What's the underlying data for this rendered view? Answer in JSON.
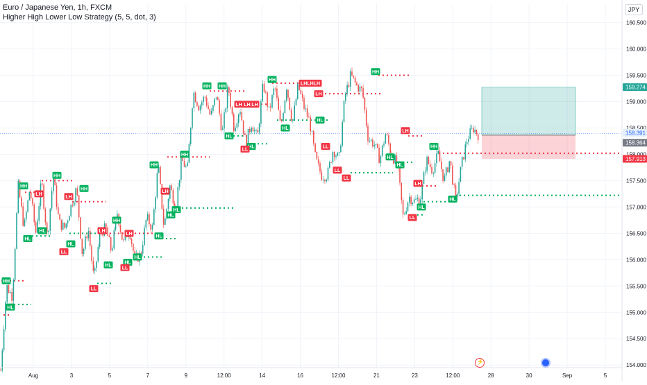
{
  "header": {
    "title": "Euro / Japanese Yen, 1h, FXCM",
    "indicator": "Higher High Lower Low Strategy (5, 5, dot, 3)",
    "currency": "JPY"
  },
  "price_tags": {
    "take_profit": "159.274",
    "current": "158.391",
    "entry": "158.364",
    "stop": "157.913"
  },
  "labels": {
    "HH": "HH",
    "HL": "HL",
    "LH": "LH",
    "LL": "LL",
    "LHLH": "LHLHLH"
  },
  "colors": {
    "up": "#26a69a",
    "down": "#ef5350",
    "green_label": "#00b15d",
    "red_label": "#f23645",
    "tp_zone": "rgba(38,166,154,0.22)",
    "sl_zone": "rgba(242,54,69,0.22)"
  },
  "icons": {
    "flash": "flash-icon",
    "globe": "globe-icon"
  },
  "chart_data": {
    "type": "candlestick",
    "y_ticks": [
      "160.500",
      "160.000",
      "159.500",
      "159.000",
      "158.500",
      "158.000",
      "157.500",
      "157.000",
      "156.500",
      "156.000",
      "155.500",
      "155.000",
      "154.500",
      "154.000"
    ],
    "ylim": [
      153.95,
      160.85
    ],
    "x_ticks": [
      "Aug",
      "3",
      "5",
      "7",
      "9",
      "12:00",
      "14",
      "16",
      "12:00",
      "21",
      "23",
      "12:00",
      "28",
      "30",
      "Sep",
      "5"
    ],
    "path": [
      153.9,
      155.5,
      155.3,
      157.4,
      156.6,
      157.35,
      156.5,
      157.5,
      156.4,
      157.6,
      156.7,
      156.6,
      157.0,
      157.35,
      156.1,
      156.6,
      155.6,
      156.5,
      156.6,
      156.15,
      156.9,
      156.3,
      156.6,
      156.0,
      156.1,
      156.8,
      156.6,
      157.8,
      156.6,
      157.4,
      157.0,
      157.9,
      157.7,
      159.2,
      158.9,
      159.1,
      158.7,
      159.15,
      158.4,
      159.3,
      158.5,
      158.9,
      158.2,
      158.6,
      158.3,
      159.35,
      158.8,
      159.3,
      158.5,
      159.3,
      158.6,
      159.3,
      158.9,
      158.6,
      157.9,
      157.6,
      157.6,
      158.1,
      157.9,
      159.1,
      159.5,
      159.3,
      159.2,
      158.3,
      158.2,
      157.9,
      158.4,
      158.0,
      157.8,
      156.8,
      157.2,
      157.1,
      157.2,
      157.9,
      157.7,
      158.0,
      157.5,
      157.9,
      157.1,
      157.8,
      158.3,
      158.5,
      158.35
    ],
    "green_labels": [
      {
        "t": "HH",
        "x": 9,
        "v": 155.6
      },
      {
        "t": "HL",
        "x": 15,
        "v": 155.1
      },
      {
        "t": "HH",
        "x": 34,
        "v": 157.4
      },
      {
        "t": "HL",
        "x": 40,
        "v": 156.4
      },
      {
        "t": "HL",
        "x": 61,
        "v": 156.55
      },
      {
        "t": "HH",
        "x": 82,
        "v": 157.6
      },
      {
        "t": "HL",
        "x": 102,
        "v": 156.3
      },
      {
        "t": "HH",
        "x": 121,
        "v": 157.35
      },
      {
        "t": "HL",
        "x": 156,
        "v": 155.9
      },
      {
        "t": "HH",
        "x": 168,
        "v": 156.75
      },
      {
        "t": "HL",
        "x": 184,
        "v": 155.95
      },
      {
        "t": "HL",
        "x": 198,
        "v": 156.05
      },
      {
        "t": "HH",
        "x": 222,
        "v": 157.8
      },
      {
        "t": "HL",
        "x": 229,
        "v": 156.45
      },
      {
        "t": "HL",
        "x": 246,
        "v": 156.85
      },
      {
        "t": "HL",
        "x": 254,
        "v": 156.95
      },
      {
        "t": "HH",
        "x": 266,
        "v": 158.0
      },
      {
        "t": "HH",
        "x": 298,
        "v": 159.3
      },
      {
        "t": "HH",
        "x": 320,
        "v": 159.3
      },
      {
        "t": "HL",
        "x": 330,
        "v": 158.35
      },
      {
        "t": "HL",
        "x": 362,
        "v": 158.15
      },
      {
        "t": "HH",
        "x": 392,
        "v": 159.42
      },
      {
        "t": "HL",
        "x": 411,
        "v": 158.5
      },
      {
        "t": "HL",
        "x": 461,
        "v": 158.65
      },
      {
        "t": "HH",
        "x": 541,
        "v": 159.57
      },
      {
        "t": "HL",
        "x": 562,
        "v": 157.95
      },
      {
        "t": "HL",
        "x": 576,
        "v": 157.8
      },
      {
        "t": "HL",
        "x": 607,
        "v": 157.0
      },
      {
        "t": "HH",
        "x": 625,
        "v": 158.15
      },
      {
        "t": "HL",
        "x": 652,
        "v": 157.15
      }
    ],
    "red_labels": [
      {
        "t": "LH",
        "x": 56,
        "v": 157.25
      },
      {
        "t": "LH",
        "x": 99,
        "v": 157.2
      },
      {
        "t": "LL",
        "x": 92,
        "v": 156.15
      },
      {
        "t": "LH",
        "x": 147,
        "v": 156.55
      },
      {
        "t": "LL",
        "x": 135,
        "v": 155.45
      },
      {
        "t": "LH",
        "x": 186,
        "v": 156.5
      },
      {
        "t": "LL",
        "x": 180,
        "v": 155.85
      },
      {
        "t": "LH",
        "x": 238,
        "v": 157.3
      },
      {
        "t": "LH",
        "x": 344,
        "v": 158.95
      },
      {
        "t": "LH",
        "x": 356,
        "v": 158.95
      },
      {
        "t": "LH",
        "x": 367,
        "v": 158.95
      },
      {
        "t": "LL",
        "x": 353,
        "v": 158.1
      },
      {
        "t": "LHLH",
        "x": 447,
        "v": 159.35
      },
      {
        "t": "LH",
        "x": 459,
        "v": 159.15
      },
      {
        "t": "LL",
        "x": 469,
        "v": 158.15
      },
      {
        "t": "LL",
        "x": 486,
        "v": 157.7
      },
      {
        "t": "LL",
        "x": 499,
        "v": 157.55
      },
      {
        "t": "LH",
        "x": 584,
        "v": 158.45
      },
      {
        "t": "LL",
        "x": 594,
        "v": 156.8
      },
      {
        "t": "LH",
        "x": 602,
        "v": 157.45
      }
    ],
    "green_lines": [
      {
        "x1": 20,
        "x2": 45,
        "v": 155.15
      },
      {
        "x1": 40,
        "x2": 75,
        "v": 156.45
      },
      {
        "x1": 100,
        "x2": 140,
        "v": 156.5
      },
      {
        "x1": 98,
        "x2": 110,
        "v": 156.25
      },
      {
        "x1": 140,
        "x2": 162,
        "v": 155.55
      },
      {
        "x1": 195,
        "x2": 237,
        "v": 156.05
      },
      {
        "x1": 233,
        "x2": 253,
        "v": 156.4
      },
      {
        "x1": 256,
        "x2": 338,
        "v": 156.98
      },
      {
        "x1": 336,
        "x2": 360,
        "v": 158.35
      },
      {
        "x1": 365,
        "x2": 388,
        "v": 158.2
      },
      {
        "x1": 399,
        "x2": 455,
        "v": 158.65
      },
      {
        "x1": 464,
        "x2": 476,
        "v": 158.65
      },
      {
        "x1": 505,
        "x2": 566,
        "v": 157.65
      },
      {
        "x1": 574,
        "x2": 598,
        "v": 157.85
      },
      {
        "x1": 610,
        "x2": 647,
        "v": 157.1
      },
      {
        "x1": 656,
        "x2": 928,
        "v": 157.22
      },
      {
        "x1": 595,
        "x2": 612,
        "v": 156.85
      }
    ],
    "red_lines": [
      {
        "x1": 2,
        "x2": 37,
        "v": 155.6
      },
      {
        "x1": 36,
        "x2": 62,
        "v": 157.28
      },
      {
        "x1": 60,
        "x2": 105,
        "v": 157.5
      },
      {
        "x1": 104,
        "x2": 153,
        "v": 157.1
      },
      {
        "x1": 152,
        "x2": 230,
        "v": 156.5
      },
      {
        "x1": 241,
        "x2": 302,
        "v": 157.95
      },
      {
        "x1": 302,
        "x2": 352,
        "v": 159.2
      },
      {
        "x1": 352,
        "x2": 388,
        "v": 158.95
      },
      {
        "x1": 392,
        "x2": 438,
        "v": 159.35
      },
      {
        "x1": 462,
        "x2": 548,
        "v": 159.15
      },
      {
        "x1": 545,
        "x2": 592,
        "v": 159.5
      },
      {
        "x1": 588,
        "x2": 608,
        "v": 158.35
      },
      {
        "x1": 608,
        "x2": 628,
        "v": 157.4
      },
      {
        "x1": 632,
        "x2": 928,
        "v": 158.02
      },
      {
        "x1": 5,
        "x2": 16,
        "v": 154.95
      }
    ],
    "position": {
      "x1": 694,
      "x2": 829,
      "tp": 159.274,
      "entry": 158.364,
      "sl": 157.913
    },
    "current_price": 158.391
  }
}
